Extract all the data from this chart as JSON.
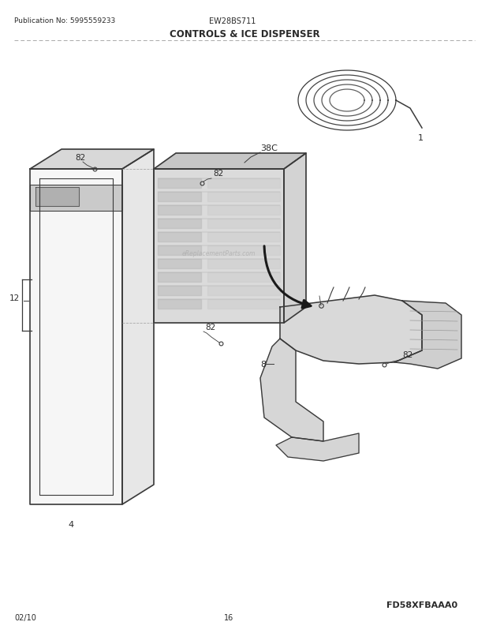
{
  "title": "CONTROLS & ICE DISPENSER",
  "pub_no": "Publication No: 5995559233",
  "model": "EW28BS711",
  "diagram_code": "FD58XFBAAA0",
  "date": "02/10",
  "page": "16",
  "bg_color": "#ffffff",
  "text_color": "#2a2a2a",
  "line_color": "#3a3a3a",
  "gray_fill": "#d4d4d4",
  "dark_gray": "#888888",
  "light_gray": "#eeeeee"
}
